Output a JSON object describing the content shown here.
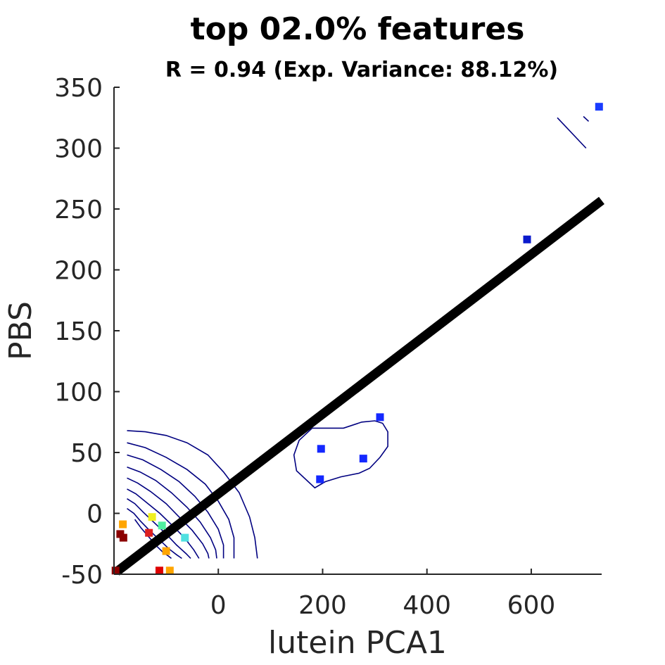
{
  "chart_data": {
    "type": "scatter",
    "title": "top 02.0% features",
    "subtitle": "R = 0.94 (Exp. Variance: 88.12%)",
    "xlabel": "lutein PCA1",
    "ylabel": "PBS",
    "xlim": [
      -200,
      735
    ],
    "ylim": [
      -50,
      350
    ],
    "xticks": [
      0,
      200,
      400,
      600
    ],
    "yticks": [
      -50,
      0,
      50,
      100,
      150,
      200,
      250,
      300,
      350
    ],
    "grid": false,
    "legend": "none",
    "points": [
      {
        "x": 730,
        "y": 334,
        "color": "#1a3cff"
      },
      {
        "x": 592,
        "y": 225,
        "color": "#0a1acc"
      },
      {
        "x": 310,
        "y": 79,
        "color": "#1428ff"
      },
      {
        "x": 197,
        "y": 53,
        "color": "#1428ff"
      },
      {
        "x": 278,
        "y": 45,
        "color": "#1428ff"
      },
      {
        "x": 195,
        "y": 28,
        "color": "#1428ff"
      },
      {
        "x": -127,
        "y": -3,
        "color": "#f0f020"
      },
      {
        "x": -108,
        "y": -10,
        "color": "#50f0a0"
      },
      {
        "x": -64,
        "y": -20,
        "color": "#50e0e0"
      },
      {
        "x": -183,
        "y": -9,
        "color": "#ffa500"
      },
      {
        "x": -133,
        "y": -16,
        "color": "#dd2020"
      },
      {
        "x": -188,
        "y": -17,
        "color": "#8b0000"
      },
      {
        "x": -182,
        "y": -20,
        "color": "#8b0000"
      },
      {
        "x": -100,
        "y": -31,
        "color": "#ffa500"
      },
      {
        "x": -197,
        "y": -47,
        "color": "#8b0000"
      },
      {
        "x": -113,
        "y": -47,
        "color": "#dd0000"
      },
      {
        "x": -93,
        "y": -47,
        "color": "#ffa500"
      }
    ],
    "fit_line": {
      "x": [
        -195,
        735
      ],
      "y": [
        -48,
        257
      ],
      "color": "#000000"
    },
    "contours": [
      {
        "color": "#000080",
        "x": [
          -175,
          -140,
          -100,
          -60,
          -25,
          0,
          20,
          30,
          30
        ],
        "y": [
          58,
          54,
          46,
          36,
          24,
          10,
          -5,
          -20,
          -37
        ]
      },
      {
        "color": "#000080",
        "x": [
          -175,
          -145,
          -110,
          -75,
          -45,
          -20,
          0,
          10,
          10
        ],
        "y": [
          48,
          44,
          36,
          26,
          14,
          1,
          -13,
          -26,
          -37
        ]
      },
      {
        "color": "#000080",
        "x": [
          -175,
          -150,
          -120,
          -90,
          -60,
          -35,
          -15,
          -5,
          -3
        ],
        "y": [
          38,
          34,
          27,
          17,
          5,
          -7,
          -20,
          -30,
          -37
        ]
      },
      {
        "color": "#000080",
        "x": [
          -175,
          -155,
          -130,
          -100,
          -75,
          -50,
          -30,
          -20,
          -18
        ],
        "y": [
          29,
          25,
          18,
          8,
          -3,
          -14,
          -25,
          -33,
          -37
        ]
      },
      {
        "color": "#000080",
        "x": [
          -175,
          -158,
          -138,
          -112,
          -88,
          -65,
          -47,
          -37
        ],
        "y": [
          20,
          16,
          9,
          0,
          -10,
          -20,
          -30,
          -37
        ]
      },
      {
        "color": "#000080",
        "x": [
          -175,
          -160,
          -144,
          -122,
          -100,
          -80,
          -62,
          -53
        ],
        "y": [
          12,
          8,
          1,
          -8,
          -17,
          -26,
          -33,
          -37
        ]
      },
      {
        "color": "#000080",
        "x": [
          -175,
          -162,
          -150,
          -132,
          -112,
          -95,
          -80,
          -70
        ],
        "y": [
          4,
          0,
          -6,
          -14,
          -22,
          -29,
          -34,
          -37
        ]
      },
      {
        "color": "#000080",
        "x": [
          -160,
          -148,
          -132,
          -118,
          -106,
          -96,
          -90
        ],
        "y": [
          -5,
          -12,
          -20,
          -27,
          -32,
          -35,
          -37
        ]
      },
      {
        "color": "#000080",
        "x": [
          75,
          70,
          60,
          40,
          10,
          -20,
          -60,
          -100,
          -140,
          -175
        ],
        "y": [
          -37,
          -20,
          -3,
          17,
          34,
          48,
          58,
          64,
          67,
          68
        ]
      },
      {
        "color": "#000080",
        "x": [
          180,
          240,
          275,
          300,
          315,
          325,
          325,
          310,
          290,
          270,
          235,
          205,
          185,
          150,
          145,
          155,
          180
        ],
        "y": [
          70,
          70,
          75,
          76,
          74,
          67,
          55,
          46,
          37,
          33,
          30,
          26,
          21,
          35,
          48,
          60,
          70
        ]
      },
      {
        "color": "#000080",
        "x": [
          650,
          705
        ],
        "y": [
          325,
          300
        ]
      },
      {
        "color": "#000080",
        "x": [
          700,
          710
        ],
        "y": [
          326,
          322
        ]
      }
    ]
  }
}
